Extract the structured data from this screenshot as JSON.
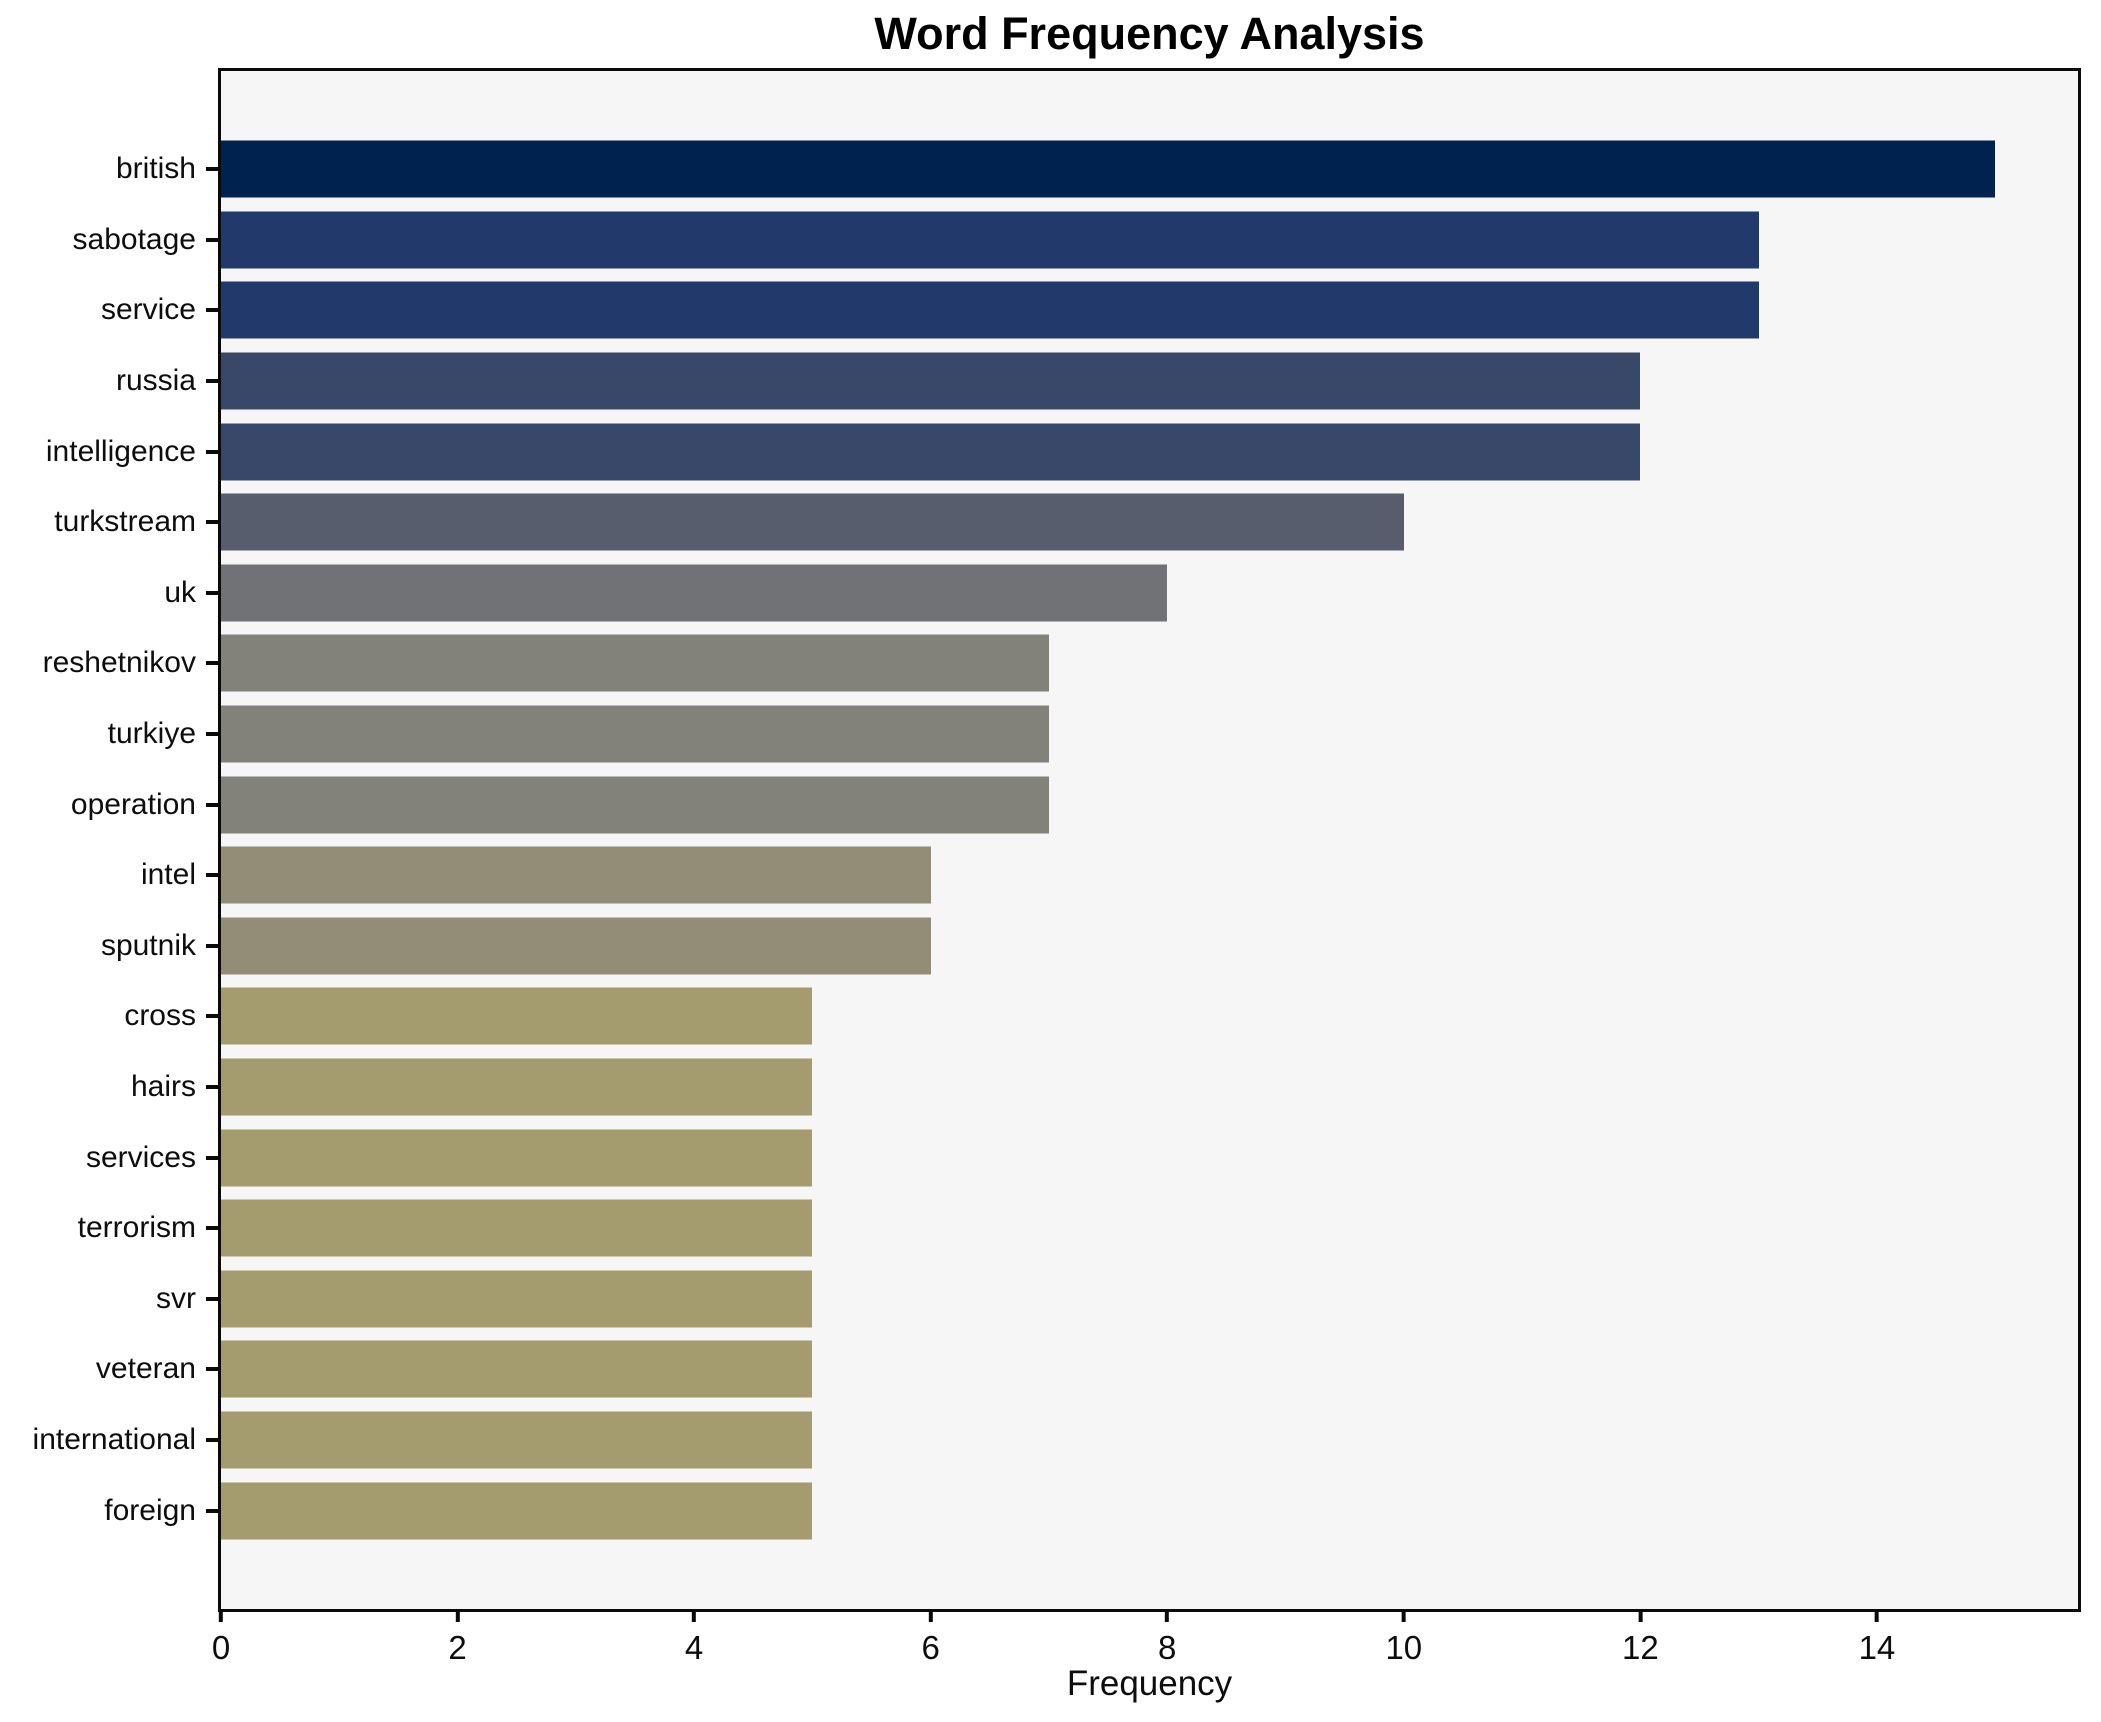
{
  "title": "Word Frequency Analysis",
  "xlabel": "Frequency",
  "colors": {
    "plot_background": "#f6f6f7",
    "figure_background": "#ffffff",
    "spine": "#0a0a0a",
    "text": "#0d0d0d"
  },
  "chart_data": {
    "type": "bar",
    "orientation": "horizontal",
    "title": "Word Frequency Analysis",
    "xlabel": "Frequency",
    "ylabel": "",
    "grid": false,
    "legend": null,
    "xlim": [
      0,
      15.7
    ],
    "xticks": [
      0,
      2,
      4,
      6,
      8,
      10,
      12,
      14
    ],
    "categories": [
      "british",
      "sabotage",
      "service",
      "russia",
      "intelligence",
      "turkstream",
      "uk",
      "reshetnikov",
      "turkiye",
      "operation",
      "intel",
      "sputnik",
      "cross",
      "hairs",
      "services",
      "terrorism",
      "svr",
      "veteran",
      "international",
      "foreign"
    ],
    "values": [
      15,
      13,
      13,
      12,
      12,
      10,
      8,
      7,
      7,
      7,
      6,
      6,
      5,
      5,
      5,
      5,
      5,
      5,
      5,
      5
    ],
    "bar_colors": [
      "#00224e",
      "#21396b",
      "#21396b",
      "#394769",
      "#394769",
      "#575d6d",
      "#717275",
      "#82817a",
      "#82817a",
      "#82817a",
      "#928d76",
      "#928d76",
      "#a49b6e",
      "#a49b6e",
      "#a49b6e",
      "#a49b6e",
      "#a49b6e",
      "#a49b6e",
      "#a49b6e",
      "#a49b6e"
    ]
  }
}
